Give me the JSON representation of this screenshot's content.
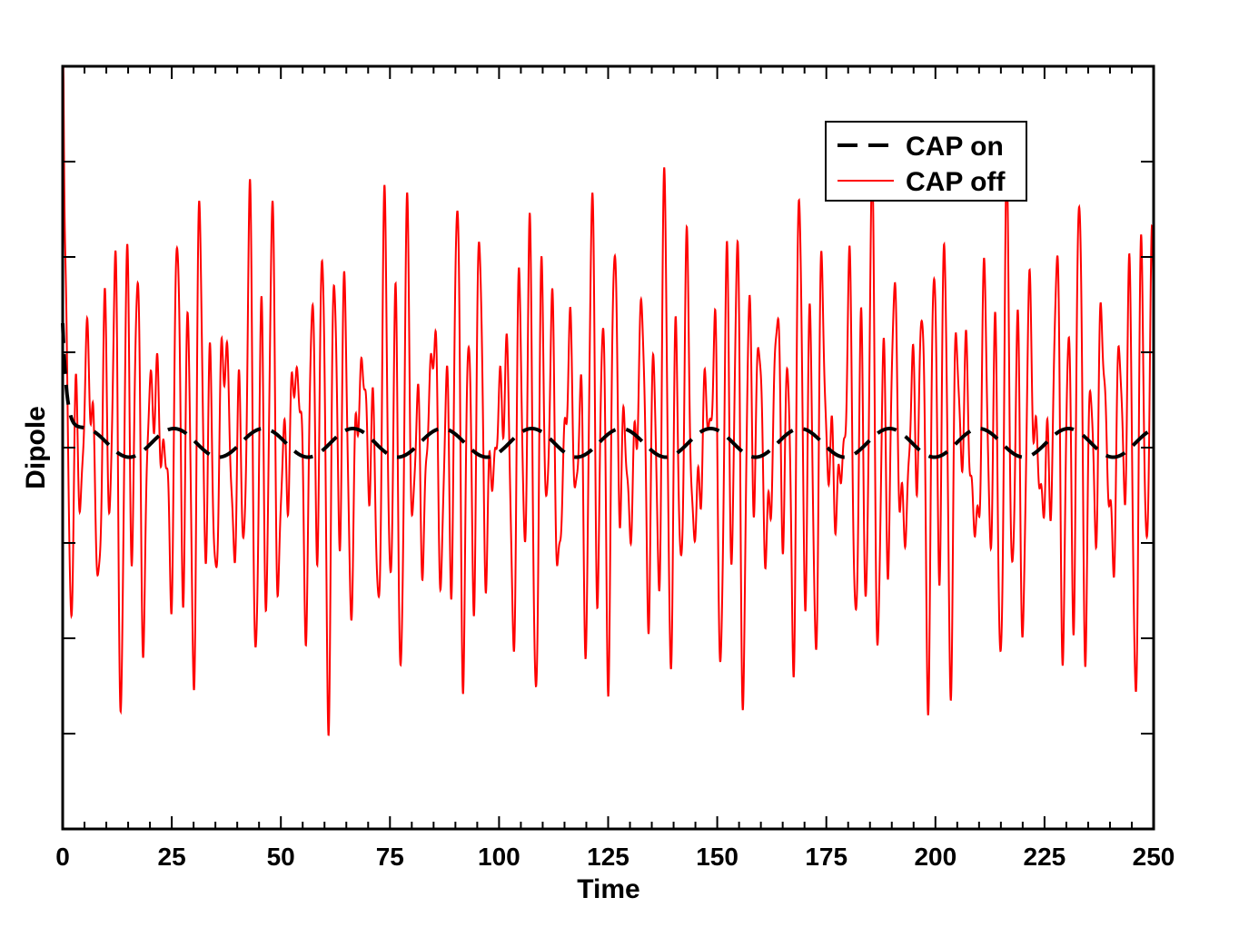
{
  "chart_data": {
    "type": "line",
    "title": "",
    "xlabel": "Time",
    "ylabel": "Dipole",
    "xlim": [
      0,
      250
    ],
    "ylim": [
      -4,
      4
    ],
    "x_ticks": [
      "0",
      "25",
      "50",
      "75",
      "100",
      "125",
      "150",
      "175",
      "200",
      "225",
      "250"
    ],
    "y_ticks_labeled": false,
    "grid": false,
    "legend_position": "top-right",
    "colors": {
      "cap_on": "#000000",
      "cap_off": "#ff0000"
    },
    "series": [
      {
        "name": "CAP on",
        "style": "dashed",
        "color": "#000000",
        "description_values": {
          "initial_value": 1.3,
          "baseline": 0.05,
          "amplitude": 0.15,
          "period": 20.5
        }
      },
      {
        "name": "CAP off",
        "style": "solid",
        "color": "#ff0000",
        "description_values": {
          "initial_peak": 4.0,
          "approx_max": 3.2,
          "approx_min": -3.4,
          "fast_period": 2.8
        }
      }
    ],
    "legend": [
      "CAP on",
      "CAP off"
    ]
  }
}
